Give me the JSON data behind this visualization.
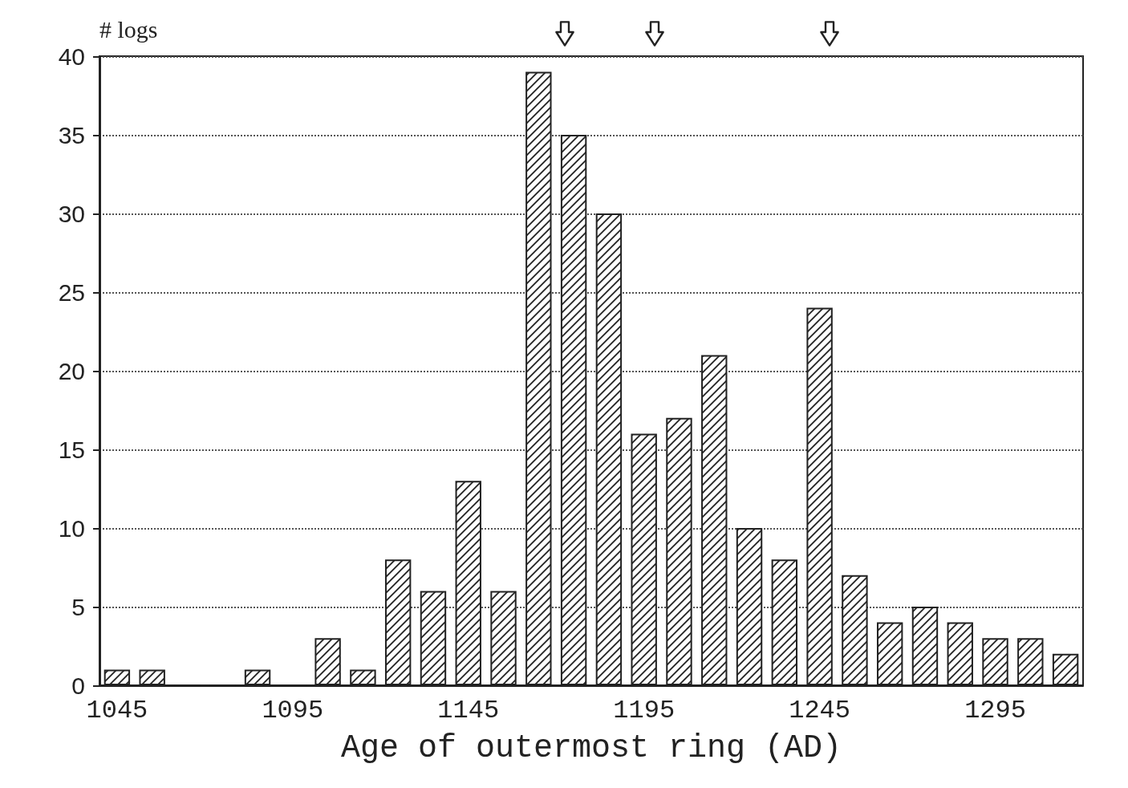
{
  "chart_data": {
    "type": "bar",
    "xlabel": "Age of outermost ring (AD)",
    "ylabel": "# logs",
    "categories": [
      "1045",
      null,
      null,
      null,
      null,
      "1095",
      null,
      null,
      null,
      null,
      "1145",
      null,
      null,
      null,
      null,
      "1195",
      null,
      null,
      null,
      null,
      "1245",
      null,
      null,
      null,
      null,
      "1295",
      null,
      null
    ],
    "values": [
      1,
      1,
      0,
      0,
      1,
      0,
      3,
      1,
      8,
      6,
      13,
      6,
      39,
      35,
      30,
      16,
      17,
      21,
      10,
      8,
      24,
      7,
      4,
      5,
      4,
      3,
      3,
      2
    ],
    "color": "#222222",
    "ylim": [
      0,
      40
    ],
    "yticks": [
      0,
      5,
      10,
      15,
      20,
      25,
      30,
      35,
      40
    ],
    "grid": "y"
  }
}
